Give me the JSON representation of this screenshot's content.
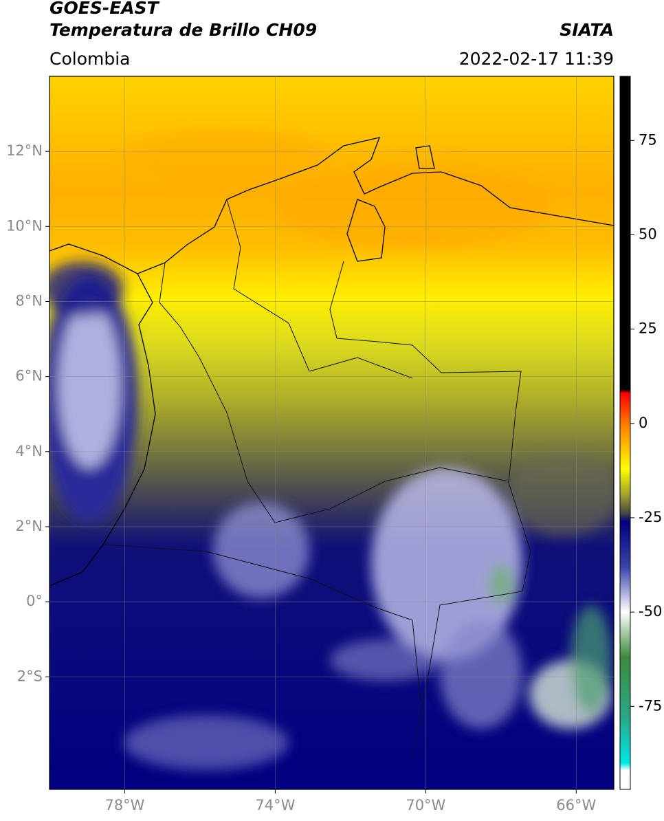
{
  "header": {
    "title_line1": "GOES-EAST",
    "title_line2": "Temperatura de Brillo CH09",
    "source": "SIATA",
    "region": "Colombia",
    "datetime": "2022-02-17 11:39"
  },
  "map": {
    "xlim": [
      -80,
      -65
    ],
    "ylim": [
      -5,
      14
    ],
    "grid": true,
    "xticks": [
      {
        "value": -78,
        "label": "78°W"
      },
      {
        "value": -74,
        "label": "74°W"
      },
      {
        "value": -70,
        "label": "70°W"
      },
      {
        "value": -66,
        "label": "66°W"
      }
    ],
    "yticks": [
      {
        "value": 12,
        "label": "12°N"
      },
      {
        "value": 10,
        "label": "10°N"
      },
      {
        "value": 8,
        "label": "8°N"
      },
      {
        "value": 6,
        "label": "6°N"
      },
      {
        "value": 4,
        "label": "4°N"
      },
      {
        "value": 2,
        "label": "2°N"
      },
      {
        "value": 0,
        "label": "0°"
      },
      {
        "value": -2,
        "label": "2°S"
      }
    ]
  },
  "colorbar": {
    "lim": [
      -97,
      92
    ],
    "ticks": [
      75,
      50,
      25,
      0,
      -25,
      -50,
      -75
    ],
    "colormap": [
      {
        "value": 92,
        "color": "#000000"
      },
      {
        "value": 9,
        "color": "#000000"
      },
      {
        "value": 8,
        "color": "#ff0000"
      },
      {
        "value": 0,
        "color": "#ff7a00"
      },
      {
        "value": -12,
        "color": "#ffff00"
      },
      {
        "value": -19,
        "color": "#a0a030"
      },
      {
        "value": -24,
        "color": "#444444"
      },
      {
        "value": -26,
        "color": "#000080"
      },
      {
        "value": -38,
        "color": "#3a44a8"
      },
      {
        "value": -50,
        "color": "#ffffff"
      },
      {
        "value": -62,
        "color": "#3d8a3d"
      },
      {
        "value": -78,
        "color": "#2aa88a"
      },
      {
        "value": -90,
        "color": "#00e6e6"
      },
      {
        "value": -92,
        "color": "#ffffff"
      },
      {
        "value": -97,
        "color": "#ffffff"
      }
    ]
  }
}
